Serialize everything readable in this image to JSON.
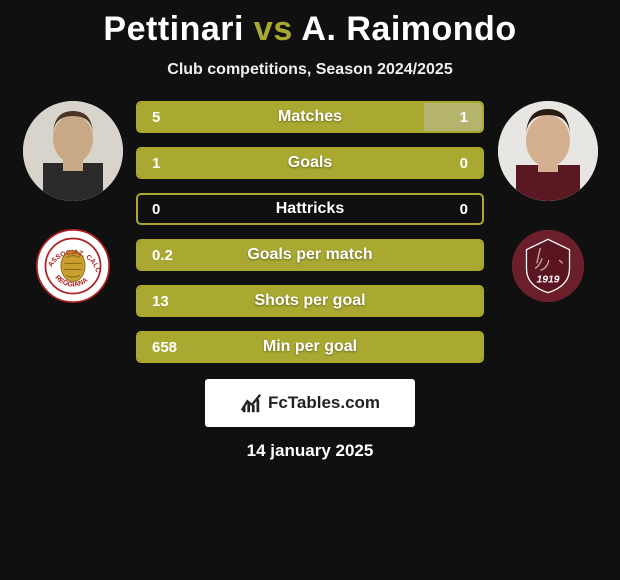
{
  "title": {
    "player1": "Pettinari",
    "vs": "vs",
    "player2": "A. Raimondo"
  },
  "subtitle": "Club competitions, Season 2024/2025",
  "colors": {
    "bar_border": "#a9a932",
    "bar_left": "#a9a932",
    "bar_right": "#b4b46c",
    "vs_color": "#a9a932",
    "club1_bg": "#ffffff",
    "club1_fg": "#b02020",
    "club2_bg": "#6a1f2a",
    "club2_fg": "#ffffff"
  },
  "club1": {
    "text": "REGGIANA",
    "year": ""
  },
  "club2": {
    "text": "",
    "year": "1919"
  },
  "stats": [
    {
      "label": "Matches",
      "left_val": "5",
      "right_val": "1",
      "left_pct": 83,
      "right_pct": 17
    },
    {
      "label": "Goals",
      "left_val": "1",
      "right_val": "0",
      "left_pct": 100,
      "right_pct": 0
    },
    {
      "label": "Hattricks",
      "left_val": "0",
      "right_val": "0",
      "left_pct": 0,
      "right_pct": 0
    },
    {
      "label": "Goals per match",
      "left_val": "0.2",
      "right_val": "",
      "left_pct": 100,
      "right_pct": 0
    },
    {
      "label": "Shots per goal",
      "left_val": "13",
      "right_val": "",
      "left_pct": 100,
      "right_pct": 0
    },
    {
      "label": "Min per goal",
      "left_val": "658",
      "right_val": "",
      "left_pct": 100,
      "right_pct": 0
    }
  ],
  "brand": "FcTables.com",
  "date": "14 january 2025"
}
